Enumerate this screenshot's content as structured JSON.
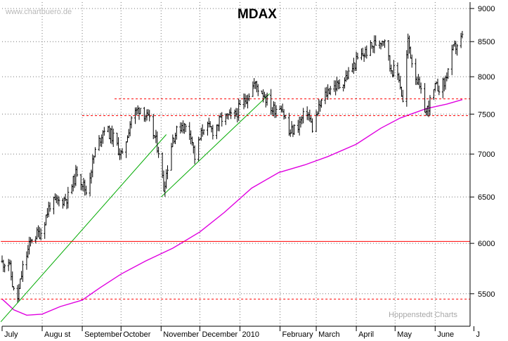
{
  "chart_data": {
    "type": "candlestick",
    "title": "MDAX",
    "watermark": "www.chartbuero.de",
    "credit": "Hoppenstedt Charts",
    "y_axis": {
      "scale": "log",
      "position": "right",
      "range": [
        5200,
        9100
      ],
      "ticks": [
        "9000",
        "8500",
        "8000",
        "7500",
        "7000",
        "6500",
        "6000",
        "5500"
      ]
    },
    "x_axis": {
      "range": [
        "2009-07-01",
        "2010-06-28"
      ],
      "month_labels": [
        {
          "label": "July",
          "date": "2009-07-01"
        },
        {
          "label": "Augu st",
          "date": "2009-08-01"
        },
        {
          "label": "September",
          "date": "2009-09-01"
        },
        {
          "label": "October",
          "date": "2009-10-01"
        },
        {
          "label": "November",
          "date": "2009-11-01"
        },
        {
          "label": "December",
          "date": "2009-12-01"
        },
        {
          "label": "2010",
          "date": "2010-01-01"
        },
        {
          "label": "February",
          "date": "2010-02-01"
        },
        {
          "label": "March",
          "date": "2010-03-01"
        },
        {
          "label": "April",
          "date": "2010-04-01"
        },
        {
          "label": "May",
          "date": "2010-05-01"
        },
        {
          "label": "June",
          "date": "2010-06-01"
        },
        {
          "label": "J",
          "date": "2010-07-01"
        }
      ]
    },
    "colors": {
      "price": "#000000",
      "moving_average": "#e000e0",
      "trend": "#00aa00",
      "support": "#ff0000"
    },
    "price_path": [
      [
        "2009-07-01",
        5800
      ],
      [
        "2009-07-06",
        5820
      ],
      [
        "2009-07-10",
        5520
      ],
      [
        "2009-07-13",
        5460
      ],
      [
        "2009-07-17",
        5750
      ],
      [
        "2009-07-24",
        6060
      ],
      [
        "2009-07-31",
        6120
      ],
      [
        "2009-08-07",
        6420
      ],
      [
        "2009-08-14",
        6450
      ],
      [
        "2009-08-21",
        6500
      ],
      [
        "2009-08-28",
        6800
      ],
      [
        "2009-09-04",
        6560
      ],
      [
        "2009-09-11",
        7030
      ],
      [
        "2009-09-18",
        7330
      ],
      [
        "2009-09-25",
        7200
      ],
      [
        "2009-10-02",
        6960
      ],
      [
        "2009-10-09",
        7460
      ],
      [
        "2009-10-16",
        7590
      ],
      [
        "2009-10-23",
        7400
      ],
      [
        "2009-10-30",
        7050
      ],
      [
        "2009-11-03",
        6600
      ],
      [
        "2009-11-10",
        7200
      ],
      [
        "2009-11-17",
        7370
      ],
      [
        "2009-11-24",
        7260
      ],
      [
        "2009-11-27",
        6960
      ],
      [
        "2009-12-04",
        7350
      ],
      [
        "2009-12-11",
        7290
      ],
      [
        "2009-12-18",
        7440
      ],
      [
        "2009-12-28",
        7480
      ],
      [
        "2010-01-06",
        7720
      ],
      [
        "2010-01-12",
        7900
      ],
      [
        "2010-01-19",
        7780
      ],
      [
        "2010-01-26",
        7560
      ],
      [
        "2010-02-02",
        7620
      ],
      [
        "2010-02-08",
        7250
      ],
      [
        "2010-02-15",
        7360
      ],
      [
        "2010-02-22",
        7540
      ],
      [
        "2010-02-26",
        7320
      ],
      [
        "2010-03-05",
        7660
      ],
      [
        "2010-03-12",
        7860
      ],
      [
        "2010-03-19",
        7880
      ],
      [
        "2010-03-26",
        8040
      ],
      [
        "2010-04-02",
        8240
      ],
      [
        "2010-04-09",
        8360
      ],
      [
        "2010-04-16",
        8480
      ],
      [
        "2010-04-23",
        8560
      ],
      [
        "2010-04-27",
        8140
      ],
      [
        "2010-05-04",
        8000
      ],
      [
        "2010-05-07",
        7650
      ],
      [
        "2010-05-11",
        8500
      ],
      [
        "2010-05-14",
        8220
      ],
      [
        "2010-05-21",
        7760
      ],
      [
        "2010-05-25",
        7520
      ],
      [
        "2010-06-01",
        7840
      ],
      [
        "2010-06-08",
        7900
      ],
      [
        "2010-06-15",
        8380
      ],
      [
        "2010-06-22",
        8560
      ]
    ],
    "moving_average_path": [
      [
        "2009-07-01",
        5450
      ],
      [
        "2009-07-10",
        5350
      ],
      [
        "2009-07-20",
        5300
      ],
      [
        "2009-08-01",
        5310
      ],
      [
        "2009-08-15",
        5380
      ],
      [
        "2009-09-01",
        5440
      ],
      [
        "2009-09-15",
        5560
      ],
      [
        "2009-10-01",
        5690
      ],
      [
        "2009-10-20",
        5820
      ],
      [
        "2009-11-10",
        5950
      ],
      [
        "2009-12-01",
        6120
      ],
      [
        "2009-12-20",
        6330
      ],
      [
        "2010-01-10",
        6600
      ],
      [
        "2010-01-31",
        6780
      ],
      [
        "2010-02-20",
        6870
      ],
      [
        "2010-03-10",
        6970
      ],
      [
        "2010-04-01",
        7120
      ],
      [
        "2010-04-20",
        7320
      ],
      [
        "2010-05-05",
        7450
      ],
      [
        "2010-05-25",
        7570
      ],
      [
        "2010-06-10",
        7630
      ],
      [
        "2010-06-22",
        7690
      ]
    ],
    "trend_lines": [
      {
        "from": [
          "2009-06-30",
          5240
        ],
        "to": [
          "2009-11-05",
          7240
        ]
      },
      {
        "from": [
          "2009-11-01",
          6500
        ],
        "to": [
          "2010-01-24",
          7770
        ]
      }
    ],
    "horizontal_lines": [
      {
        "value": 7700,
        "from": "2009-09-26",
        "to": "2010-06-28",
        "style": "dashed"
      },
      {
        "value": 7480,
        "from": "2009-09-01",
        "to": "2010-06-28",
        "style": "dashed"
      },
      {
        "value": 6020,
        "from": "2009-06-30",
        "to": "2010-06-28",
        "style": "solid"
      },
      {
        "value": 5450,
        "from": "2009-06-30",
        "to": "2010-06-28",
        "style": "dashed"
      }
    ]
  }
}
